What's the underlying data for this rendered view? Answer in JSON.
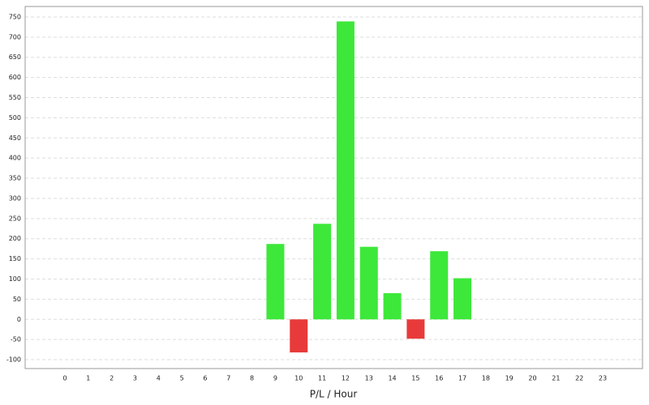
{
  "chart_data": {
    "type": "bar",
    "x_label": "P/L / Hour",
    "categories": [
      "0",
      "1",
      "2",
      "3",
      "4",
      "5",
      "6",
      "7",
      "8",
      "9",
      "10",
      "11",
      "12",
      "13",
      "14",
      "15",
      "16",
      "17",
      "18",
      "19",
      "20",
      "21",
      "22",
      "23"
    ],
    "values": [
      0,
      0,
      0,
      0,
      0,
      0,
      0,
      0,
      0,
      187,
      -82,
      237,
      739,
      180,
      65,
      -48,
      169,
      102,
      0,
      0,
      0,
      0,
      0,
      0
    ],
    "positive_color": "#3de83a",
    "negative_color": "#e83a3a",
    "ylim": [
      -122,
      776
    ],
    "yticks": [
      -100,
      -50,
      0,
      50,
      100,
      150,
      200,
      250,
      300,
      350,
      400,
      450,
      500,
      550,
      600,
      650,
      700,
      750
    ],
    "grid": true
  }
}
